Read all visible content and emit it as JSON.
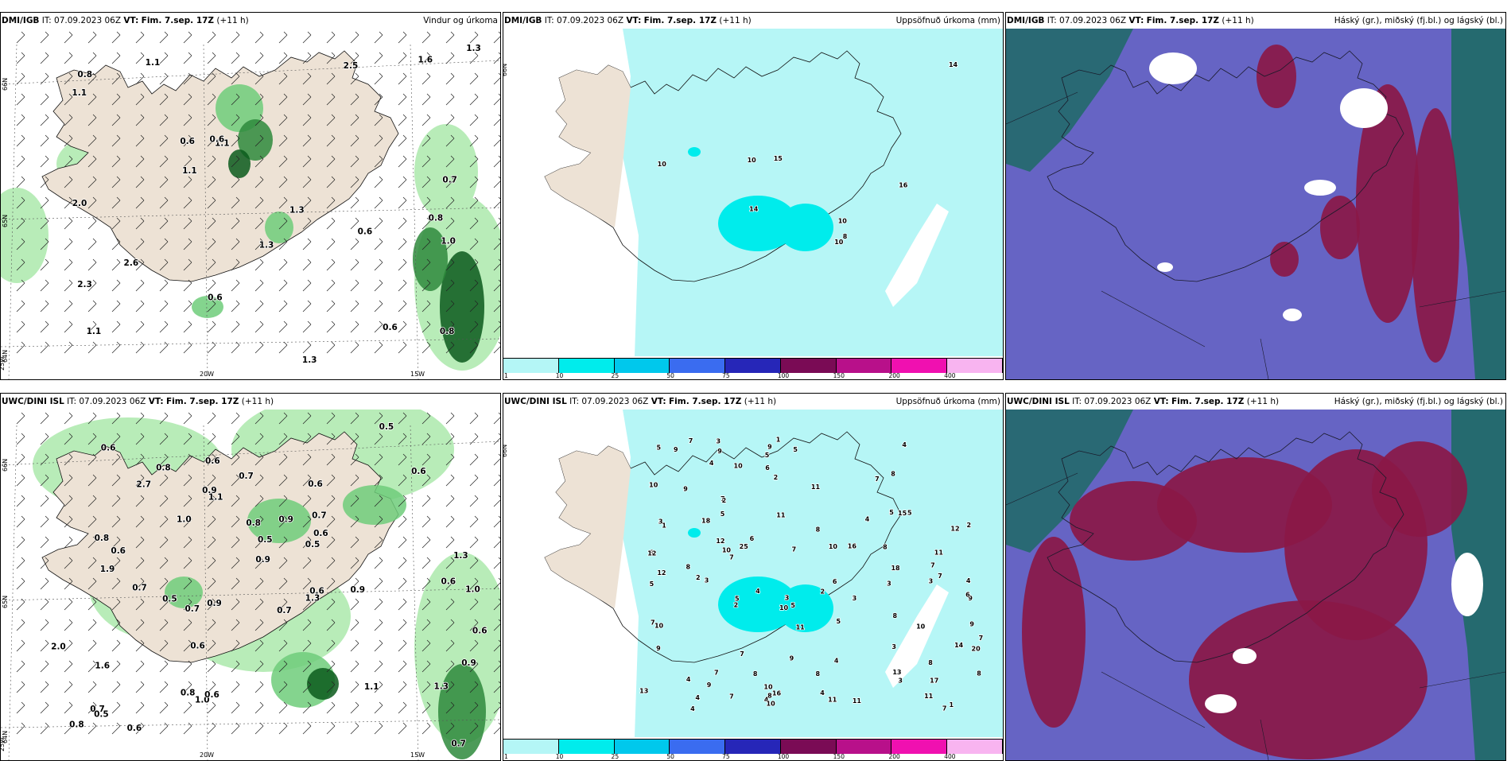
{
  "panels": [
    {
      "source": "DMI/IGB",
      "it": "IT: 07.09.2023 06Z",
      "vt_label": "VT:",
      "vt": "Fim. 7.sep. 17Z",
      "lead": "(+11 h)",
      "title": "Vindur og úrkoma",
      "type": "wind",
      "labels": [
        "0.6",
        "0.8",
        "1.1",
        "1.1",
        "1.1",
        "0.6",
        "2.3",
        "2.5",
        "0.6",
        "1.3",
        "1.1",
        "2.0",
        "0.8",
        "0.8",
        "0.6",
        "0.7",
        "1.3",
        "1.3",
        "0.6",
        "2.6",
        "1.3",
        "1.6",
        "1.1",
        "1.0"
      ],
      "axis": [
        "66N",
        "65N",
        "64N",
        "25W",
        "20W",
        "15W"
      ]
    },
    {
      "source": "DMI/IGB",
      "it": "IT: 07.09.2023 06Z",
      "vt_label": "VT:",
      "vt": "Fim. 7.sep. 17Z",
      "lead": "(+11 h)",
      "title": "Uppsöfnuð úrkoma (mm)",
      "type": "accum",
      "labels": [
        "8",
        "10",
        "14",
        "10",
        "14",
        "15",
        "16",
        "10",
        "10"
      ],
      "axis": [
        "66N"
      ]
    },
    {
      "source": "DMI/IGB",
      "it": "IT: 07.09.2023 06Z",
      "vt_label": "VT:",
      "vt": "Fim. 7.sep. 17Z",
      "lead": "(+11 h)",
      "title": "Háský (gr.), miðský (fj.bl.) og lágský (bl.)",
      "type": "cloud",
      "axis": []
    },
    {
      "source": "UWC/DINI ISL",
      "it": "IT: 07.09.2023 06Z",
      "vt_label": "VT:",
      "vt": "Fim. 7.sep. 17Z",
      "lead": "(+11 h)",
      "title": "",
      "type": "wind",
      "labels": [
        "0.8",
        "0.6",
        "0.8",
        "0.6",
        "0.6",
        "0.5",
        "0.8",
        "0.6",
        "0.5",
        "0.8",
        "1.0",
        "0.6",
        "0.7",
        "1.1",
        "0.6",
        "1.0",
        "1.3",
        "0.7",
        "0.8",
        "0.6",
        "0.5",
        "0.9",
        "0.9",
        "0.7",
        "0.5",
        "1.0",
        "0.5",
        "0.6",
        "1.3",
        "0.7",
        "0.9",
        "0.7",
        "0.9",
        "0.9",
        "1.1",
        "0.6",
        "1.3",
        "0.6",
        "0.7",
        "0.9",
        "0.6",
        "1.9",
        "1.6",
        "2.0",
        "0.6",
        "0.7",
        "2.7"
      ],
      "axis": [
        "66N",
        "65N",
        "64N",
        "25W",
        "20W",
        "15W"
      ]
    },
    {
      "source": "UWC/DINI ISL",
      "it": "IT: 07.09.2023 06Z",
      "vt_label": "VT:",
      "vt": "Fim. 7.sep. 17Z",
      "lead": "(+11 h)",
      "title": "Uppsöfnuð úrkoma (mm)",
      "type": "accum",
      "labels": [
        "9",
        "11",
        "7",
        "2",
        "1",
        "7",
        "8",
        "7",
        "2",
        "2",
        "1",
        "4",
        "8",
        "7",
        "8",
        "8",
        "5",
        "2",
        "5",
        "4",
        "3",
        "4",
        "3",
        "3",
        "4",
        "3",
        "3",
        "7",
        "8",
        "4",
        "9",
        "10",
        "11",
        "9",
        "10",
        "8",
        "4",
        "5",
        "5",
        "11",
        "3",
        "9",
        "3",
        "1",
        "2",
        "4",
        "2",
        "4",
        "5",
        "8",
        "9",
        "4",
        "4",
        "12",
        "15",
        "16",
        "10",
        "14",
        "8",
        "11",
        "9",
        "13",
        "3",
        "12",
        "18",
        "9",
        "10",
        "3",
        "7",
        "8",
        "7",
        "4",
        "16",
        "13",
        "20",
        "12",
        "25",
        "10",
        "9",
        "10",
        "7",
        "12",
        "18",
        "10",
        "7",
        "7",
        "8",
        "6",
        "5",
        "6",
        "9",
        "5",
        "6",
        "17",
        "8",
        "5",
        "5",
        "10",
        "7",
        "7",
        "7",
        "5",
        "11",
        "11",
        "10",
        "11",
        "6"
      ],
      "axis": [
        "66N"
      ]
    },
    {
      "source": "UWC/DINI ISL",
      "it": "IT: 07.09.2023 06Z",
      "vt_label": "VT:",
      "vt": "Fim. 7.sep. 17Z",
      "lead": "(+11 h)",
      "title": "Háský (gr.), miðský (fj.bl.) og lágský (bl.)",
      "type": "cloud",
      "axis": []
    }
  ],
  "colorbar": {
    "ticks": [
      "1",
      "10",
      "25",
      "50",
      "75",
      "100",
      "150",
      "200",
      "400"
    ],
    "colors": [
      "#b4f6f6",
      "#00ecec",
      "#00c8ec",
      "#3a6cf0",
      "#2626b8",
      "#7a0b55",
      "#b8108a",
      "#f010b0",
      "#f8b4f0"
    ]
  },
  "map_colors": {
    "land": "#ede2d5",
    "sea": "#ffffff",
    "precip_light": "#b8ecb8",
    "precip_mid": "#6fcc7a",
    "precip_dark": "#2e8a3c",
    "precip_deep": "#0b5a1c",
    "accum_bg": "#b6f6f6",
    "cloud_high": "#6664c4",
    "cloud_mid": "#8a1846",
    "cloud_low": "#1e6a66"
  }
}
